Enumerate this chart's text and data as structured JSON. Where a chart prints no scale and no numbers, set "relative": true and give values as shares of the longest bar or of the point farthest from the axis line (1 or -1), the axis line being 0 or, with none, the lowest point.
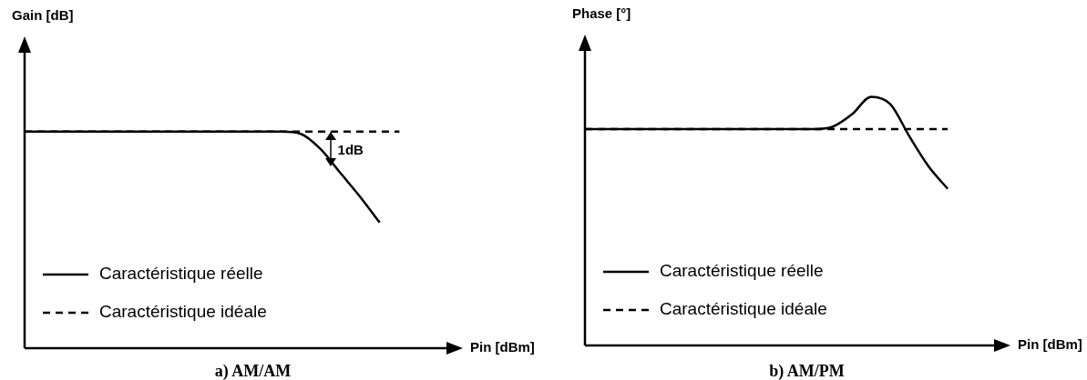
{
  "chart_data": [
    {
      "type": "line",
      "title": "a) AM/AM",
      "xlabel": "Pin [dBm]",
      "ylabel": "Gain [dB]",
      "relative": true,
      "legend": "bottom left",
      "annotations": [
        "1dB"
      ],
      "categories": [
        null,
        null,
        null,
        null,
        null,
        null,
        null,
        null,
        null,
        null,
        null,
        null,
        null,
        null,
        null,
        null,
        null,
        null,
        null,
        null,
        null
      ],
      "series": [
        {
          "name": "Caractéristique réelle",
          "color": "#000000",
          "line_style": "solid",
          "values": [
            1,
            1,
            1,
            1,
            1,
            1,
            1,
            1,
            1,
            1,
            1,
            1,
            1,
            1,
            0.99,
            0.92,
            0.81,
            0.7,
            0.58,
            null,
            null
          ]
        },
        {
          "name": "Caractéristique idéale",
          "color": "#000000",
          "line_style": "dashed",
          "values": [
            1,
            1,
            1,
            1,
            1,
            1,
            1,
            1,
            1,
            1,
            1,
            1,
            1,
            1,
            1,
            1,
            1,
            1,
            1,
            1,
            null
          ]
        }
      ]
    },
    {
      "type": "line",
      "title": "b) AM/PM",
      "xlabel": "Pin [dBm]",
      "ylabel": "Phase [°]",
      "relative": true,
      "legend": "bottom left",
      "categories": [
        null,
        null,
        null,
        null,
        null,
        null,
        null,
        null,
        null,
        null,
        null,
        null,
        null,
        null,
        null,
        null,
        null,
        null,
        null,
        null,
        null
      ],
      "series": [
        {
          "name": "Caractéristique réelle",
          "color": "#000000",
          "line_style": "solid",
          "values": [
            0.87,
            0.87,
            0.87,
            0.87,
            0.87,
            0.87,
            0.87,
            0.87,
            0.87,
            0.87,
            0.87,
            0.87,
            0.87,
            0.88,
            0.93,
            1,
            0.97,
            0.84,
            0.72,
            0.63,
            null
          ]
        },
        {
          "name": "Caractéristique idéale",
          "color": "#000000",
          "line_style": "dashed",
          "values": [
            0.87,
            0.87,
            0.87,
            0.87,
            0.87,
            0.87,
            0.87,
            0.87,
            0.87,
            0.87,
            0.87,
            0.87,
            0.87,
            0.87,
            0.87,
            0.87,
            0.87,
            0.87,
            0.87,
            0.87,
            null
          ]
        }
      ]
    }
  ]
}
